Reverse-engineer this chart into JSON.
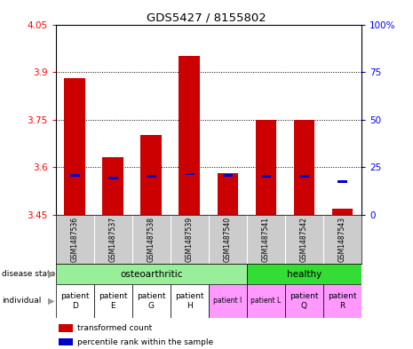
{
  "title": "GDS5427 / 8155802",
  "samples": [
    "GSM1487536",
    "GSM1487537",
    "GSM1487538",
    "GSM1487539",
    "GSM1487540",
    "GSM1487541",
    "GSM1487542",
    "GSM1487543"
  ],
  "red_values": [
    3.88,
    3.63,
    3.7,
    3.95,
    3.58,
    3.75,
    3.75,
    3.47
  ],
  "blue_values": [
    3.575,
    3.565,
    3.57,
    3.578,
    3.573,
    3.57,
    3.572,
    3.555
  ],
  "y_min": 3.45,
  "y_max": 4.05,
  "y_ticks_left": [
    3.45,
    3.6,
    3.75,
    3.9,
    4.05
  ],
  "y_ticks_right_vals": [
    0,
    25,
    50,
    75,
    100
  ],
  "y_ticks_right_pos": [
    3.45,
    3.6,
    3.75,
    3.9,
    4.05
  ],
  "individuals": [
    "patient\nD",
    "patient\nE",
    "patient\nG",
    "patient\nH",
    "patient I",
    "patient L",
    "patient\nQ",
    "patient\nR"
  ],
  "individual_colors": [
    "#ffffff",
    "#ffffff",
    "#ffffff",
    "#ffffff",
    "#ff99ff",
    "#ff99ff",
    "#ff99ff",
    "#ff99ff"
  ],
  "osteo_indices": [
    0,
    1,
    2,
    3,
    4
  ],
  "healthy_indices": [
    5,
    6,
    7
  ],
  "disease_color_osteo": "#99ee99",
  "disease_color_healthy": "#33dd33",
  "bar_color_red": "#cc0000",
  "bar_color_blue": "#0000cc",
  "bg_color": "#cccccc",
  "plot_bg": "#ffffff",
  "dotted_lines": [
    3.6,
    3.75,
    3.9
  ]
}
